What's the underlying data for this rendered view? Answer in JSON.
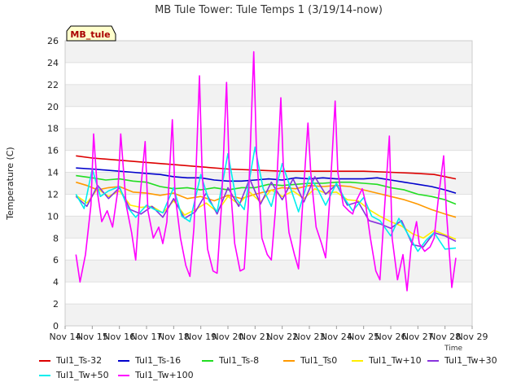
{
  "chart_data": {
    "type": "line",
    "title": "MB Tule Tower: Tule Temps 1 (3/19/14-now)",
    "station_label": "MB_tule",
    "ylabel": "Temperature (C)",
    "xlabel": "",
    "x_axis_note": "Time",
    "ylim": [
      0,
      26
    ],
    "y_ticks": [
      0,
      2,
      4,
      6,
      8,
      10,
      12,
      14,
      16,
      18,
      20,
      22,
      24,
      26
    ],
    "xlim": [
      14,
      29
    ],
    "x_ticks": [
      14,
      15,
      16,
      17,
      18,
      19,
      20,
      21,
      22,
      23,
      24,
      25,
      26,
      27,
      28,
      29
    ],
    "x_tick_labels": [
      "Nov 14",
      "Nov 15",
      "Nov 16",
      "Nov 17",
      "Nov 18",
      "Nov 19",
      "Nov 20",
      "Nov 21",
      "Nov 22",
      "Nov 23",
      "Nov 24",
      "Nov 25",
      "Nov 26",
      "Nov 27",
      "Nov 28",
      "Nov 29"
    ],
    "grid": "horizontal bands",
    "legend_position": "bottom",
    "series": [
      {
        "name": "Tul1_Ts-32",
        "color": "#dd0000",
        "x": [
          14.4,
          15,
          16,
          17,
          18,
          19,
          20,
          21,
          22,
          23,
          24,
          25,
          26,
          27,
          27.6,
          28,
          28.4
        ],
        "y": [
          15.5,
          15.3,
          15.1,
          14.9,
          14.7,
          14.5,
          14.3,
          14.2,
          14.1,
          14.1,
          14.1,
          14.1,
          14.0,
          13.9,
          13.8,
          13.6,
          13.4
        ]
      },
      {
        "name": "Tul1_Ts-16",
        "color": "#0000cc",
        "x": [
          14.4,
          15,
          15.5,
          16,
          16.5,
          17,
          17.5,
          18,
          18.5,
          19,
          19.5,
          20,
          20.5,
          21,
          21.5,
          22,
          22.5,
          23,
          23.5,
          24,
          24.5,
          25,
          25.5,
          26,
          26.5,
          27,
          27.5,
          28,
          28.4
        ],
        "y": [
          14.4,
          14.3,
          14.2,
          14.1,
          14.0,
          13.9,
          13.8,
          13.6,
          13.5,
          13.5,
          13.3,
          13.2,
          13.2,
          13.3,
          13.4,
          13.3,
          13.5,
          13.4,
          13.5,
          13.4,
          13.4,
          13.4,
          13.5,
          13.3,
          13.1,
          12.9,
          12.7,
          12.4,
          12.1
        ]
      },
      {
        "name": "Tul1_Ts-8",
        "color": "#22dd22",
        "x": [
          14.4,
          15,
          15.5,
          16,
          16.5,
          17,
          17.5,
          18,
          18.5,
          19,
          19.5,
          20,
          20.5,
          21,
          21.5,
          22,
          22.5,
          23,
          23.5,
          24,
          24.5,
          25,
          25.5,
          26,
          26.5,
          27,
          27.5,
          28,
          28.4
        ],
        "y": [
          13.7,
          13.5,
          13.3,
          13.4,
          13.2,
          13.1,
          12.7,
          12.5,
          12.6,
          12.4,
          12.6,
          12.4,
          12.6,
          12.6,
          12.9,
          12.8,
          12.9,
          13.0,
          13.0,
          13.1,
          13.1,
          13.0,
          12.9,
          12.6,
          12.4,
          12.0,
          11.8,
          11.5,
          11.1
        ]
      },
      {
        "name": "Tul1_Ts0",
        "color": "#ff9900",
        "x": [
          14.4,
          14.8,
          15.2,
          15.6,
          16.0,
          16.5,
          17.0,
          17.5,
          18.0,
          18.5,
          19.0,
          19.5,
          20.0,
          20.5,
          21.0,
          21.5,
          22.0,
          22.5,
          23.0,
          23.5,
          24.0,
          24.5,
          25.0,
          25.5,
          26.0,
          26.5,
          27.0,
          27.5,
          28.0,
          28.4
        ],
        "y": [
          13.1,
          12.8,
          12.4,
          12.6,
          12.7,
          12.2,
          12.1,
          11.9,
          12.1,
          11.6,
          11.8,
          11.4,
          11.9,
          11.6,
          12.0,
          12.3,
          12.6,
          12.5,
          12.8,
          12.7,
          12.8,
          12.7,
          12.4,
          12.1,
          11.8,
          11.5,
          11.1,
          10.6,
          10.2,
          9.9
        ]
      },
      {
        "name": "Tul1_Tw+10",
        "color": "#ffee00",
        "x": [
          14.4,
          14.8,
          15.2,
          15.6,
          16.0,
          16.4,
          16.8,
          17.2,
          17.6,
          18.0,
          18.4,
          18.8,
          19.2,
          19.6,
          20.0,
          20.4,
          20.8,
          21.2,
          21.6,
          22.0,
          22.4,
          22.8,
          23.2,
          23.6,
          24.0,
          24.4,
          24.8,
          25.2,
          25.6,
          26.0,
          26.4,
          26.8,
          27.2,
          27.6,
          28.0,
          28.4
        ],
        "y": [
          11.9,
          11.2,
          12.5,
          11.8,
          12.3,
          11.0,
          10.8,
          10.9,
          10.3,
          11.4,
          10.1,
          10.6,
          11.2,
          10.4,
          11.8,
          11.1,
          12.2,
          11.3,
          12.4,
          11.8,
          12.3,
          11.6,
          12.5,
          12.1,
          12.2,
          11.5,
          11.4,
          10.6,
          10.0,
          9.5,
          9.1,
          8.4,
          8.0,
          8.7,
          8.3,
          7.9
        ]
      },
      {
        "name": "Tul1_Tw+30",
        "color": "#8833dd",
        "x": [
          14.4,
          14.8,
          15.2,
          15.6,
          16.0,
          16.4,
          16.8,
          17.2,
          17.6,
          18.0,
          18.4,
          18.8,
          19.2,
          19.6,
          20.0,
          20.4,
          20.8,
          21.2,
          21.6,
          22.0,
          22.4,
          22.8,
          23.2,
          23.6,
          24.0,
          24.4,
          24.8,
          25.2,
          25.6,
          26.0,
          26.4,
          26.8,
          27.2,
          27.6,
          28.0,
          28.4
        ],
        "y": [
          11.8,
          10.9,
          12.8,
          11.6,
          12.6,
          10.6,
          10.2,
          10.9,
          9.9,
          11.6,
          9.8,
          10.4,
          12.1,
          10.2,
          12.6,
          10.9,
          13.4,
          11.1,
          13.1,
          11.5,
          13.4,
          11.3,
          13.6,
          12.0,
          12.9,
          11.0,
          11.3,
          9.6,
          9.3,
          8.9,
          9.6,
          7.4,
          7.2,
          8.5,
          8.2,
          7.7
        ]
      },
      {
        "name": "Tul1_Tw+50",
        "color": "#00eeee",
        "x": [
          14.4,
          14.7,
          15.0,
          15.3,
          15.6,
          16.0,
          16.3,
          16.6,
          17.0,
          17.3,
          17.6,
          18.0,
          18.3,
          18.6,
          19.0,
          19.3,
          19.6,
          20.0,
          20.3,
          20.6,
          21.0,
          21.3,
          21.6,
          22.0,
          22.3,
          22.6,
          23.0,
          23.3,
          23.6,
          24.0,
          24.3,
          24.6,
          25.0,
          25.3,
          25.6,
          26.0,
          26.3,
          26.6,
          27.0,
          27.3,
          27.6,
          28.0,
          28.4
        ],
        "y": [
          12.0,
          10.7,
          14.3,
          11.8,
          12.3,
          12.7,
          10.8,
          9.9,
          11.0,
          10.6,
          10.3,
          12.6,
          10.0,
          9.5,
          13.8,
          11.4,
          10.4,
          15.7,
          11.6,
          10.6,
          16.3,
          12.5,
          10.9,
          14.8,
          12.6,
          10.4,
          13.6,
          12.5,
          11.0,
          13.0,
          11.6,
          10.5,
          11.7,
          10.0,
          9.6,
          8.2,
          9.8,
          8.5,
          6.8,
          7.8,
          8.5,
          7.0,
          7.1
        ]
      },
      {
        "name": "Tul1_Tw+100",
        "color": "#ff00ff",
        "x": [
          14.4,
          14.55,
          14.75,
          14.95,
          15.05,
          15.2,
          15.35,
          15.55,
          15.75,
          15.95,
          16.05,
          16.25,
          16.45,
          16.6,
          16.75,
          16.95,
          17.05,
          17.25,
          17.45,
          17.6,
          17.75,
          17.95,
          18.05,
          18.25,
          18.45,
          18.6,
          18.75,
          18.95,
          19.05,
          19.25,
          19.45,
          19.6,
          19.75,
          19.95,
          20.05,
          20.25,
          20.45,
          20.6,
          20.75,
          20.95,
          21.05,
          21.25,
          21.45,
          21.6,
          21.75,
          21.95,
          22.05,
          22.25,
          22.45,
          22.6,
          22.75,
          22.95,
          23.05,
          23.25,
          23.45,
          23.6,
          23.75,
          23.95,
          24.05,
          24.25,
          24.45,
          24.6,
          24.75,
          24.95,
          25.05,
          25.25,
          25.45,
          25.6,
          25.75,
          25.95,
          26.05,
          26.25,
          26.45,
          26.6,
          26.75,
          26.95,
          27.05,
          27.25,
          27.45,
          27.6,
          27.75,
          27.95,
          28.05,
          28.25,
          28.4
        ],
        "y": [
          6.5,
          4.0,
          6.5,
          11.0,
          17.5,
          12.0,
          9.5,
          10.5,
          9.0,
          12.5,
          17.5,
          11.0,
          8.5,
          6.0,
          11.5,
          16.8,
          10.5,
          8.0,
          9.0,
          7.5,
          9.5,
          18.8,
          12.0,
          8.0,
          5.5,
          4.5,
          9.0,
          22.8,
          14.0,
          7.0,
          5.0,
          4.8,
          10.5,
          22.2,
          14.0,
          7.5,
          5.0,
          5.2,
          11.0,
          25.0,
          16.0,
          8.0,
          6.5,
          6.0,
          10.5,
          20.8,
          14.0,
          8.5,
          6.5,
          5.2,
          11.0,
          18.5,
          14.0,
          9.0,
          7.5,
          6.2,
          11.5,
          20.5,
          14.0,
          11.0,
          10.5,
          10.2,
          11.5,
          12.5,
          11.5,
          8.0,
          5.0,
          4.2,
          10.0,
          17.3,
          8.0,
          4.2,
          6.5,
          3.2,
          7.2,
          9.5,
          7.5,
          6.8,
          7.2,
          8.0,
          11.5,
          15.5,
          10.5,
          3.5,
          6.2
        ]
      }
    ]
  }
}
